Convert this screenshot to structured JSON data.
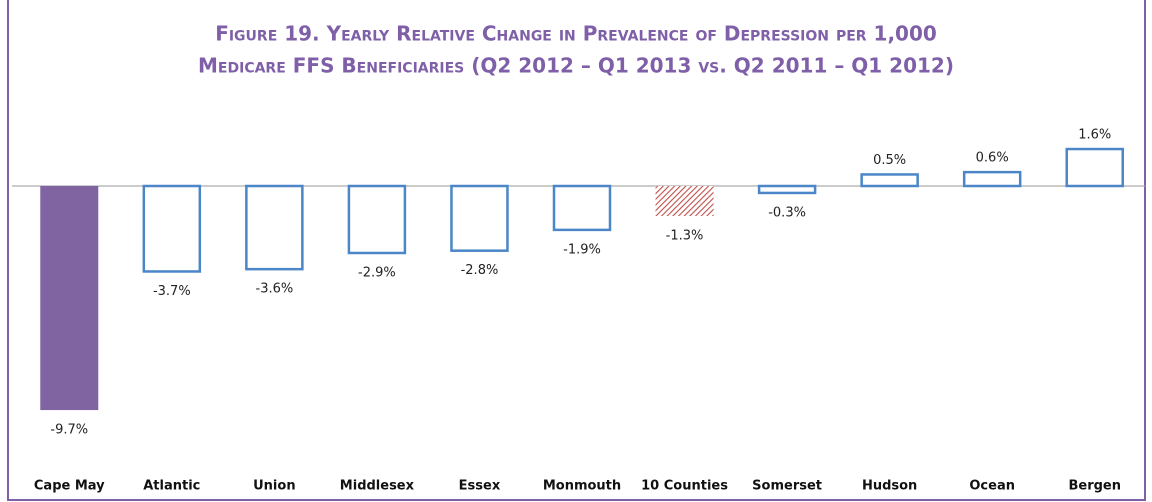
{
  "chart_data": {
    "type": "bar",
    "title": [
      "Figure 19. Yearly Relative Change in Prevalence of Depression per 1,000",
      "Medicare FFS Beneficiaries (Q2 2012 – Q1 2013 vs. Q2 2011 – Q1 2012)"
    ],
    "categories": [
      "Cape May",
      "Atlantic",
      "Union",
      "Middlesex",
      "Essex",
      "Monmouth",
      "10 Counties",
      "Somerset",
      "Hudson",
      "Ocean",
      "Bergen"
    ],
    "values": [
      -9.7,
      -3.7,
      -3.6,
      -2.9,
      -2.8,
      -1.9,
      -1.3,
      -0.3,
      0.5,
      0.6,
      1.6
    ],
    "value_labels": [
      "-9.7%",
      "-3.7%",
      "-3.6%",
      "-2.9%",
      "-2.8%",
      "-1.9%",
      "-1.3%",
      "-0.3%",
      "0.5%",
      "0.6%",
      "1.6%"
    ],
    "colors": [
      "#8064a2",
      "#4a86c8",
      "#4a86c8",
      "#4a86c8",
      "#4a86c8",
      "#4a86c8",
      "#c0504d",
      "#4a86c8",
      "#4a86c8",
      "#4a86c8",
      "#4a86c8"
    ],
    "bar_styles": [
      "solid",
      "outline",
      "outline",
      "outline",
      "outline",
      "outline",
      "hatched",
      "outline",
      "outline",
      "outline",
      "outline"
    ]
  }
}
